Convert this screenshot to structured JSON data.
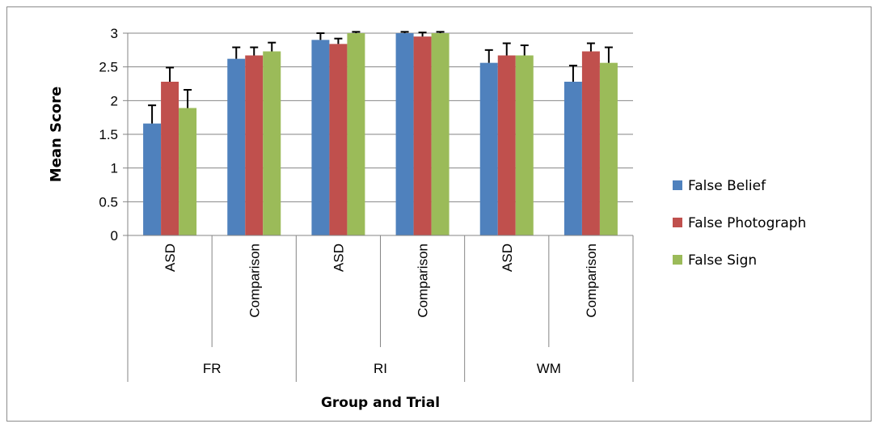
{
  "chart_data": {
    "type": "bar",
    "title": "",
    "xlabel": "Group and Trial",
    "ylabel": "Mean Score",
    "ylim": [
      0,
      3
    ],
    "yticks": [
      "0",
      "0.5",
      "1",
      "1.5",
      "2",
      "2.5",
      "3"
    ],
    "grid": "horizontal",
    "legend_position": "right",
    "groups": [
      "FR",
      "RI",
      "WM"
    ],
    "categories": [
      "ASD",
      "Comparison",
      "ASD",
      "Comparison",
      "ASD",
      "Comparison"
    ],
    "series": [
      {
        "name": "False Belief",
        "color": "#4f81bd",
        "values": [
          1.66,
          2.62,
          2.9,
          3.0,
          2.56,
          2.28
        ],
        "errors": [
          0.27,
          0.17,
          0.1,
          0.05,
          0.19,
          0.24
        ]
      },
      {
        "name": "False Photograph",
        "color": "#c0504d",
        "values": [
          2.28,
          2.67,
          2.84,
          2.95,
          2.67,
          2.73
        ],
        "errors": [
          0.21,
          0.12,
          0.08,
          0.06,
          0.18,
          0.12
        ]
      },
      {
        "name": "False Sign",
        "color": "#9bbb59",
        "values": [
          1.89,
          2.73,
          3.0,
          3.0,
          2.67,
          2.56
        ],
        "errors": [
          0.27,
          0.13,
          0.05,
          0.05,
          0.15,
          0.23
        ]
      }
    ]
  }
}
